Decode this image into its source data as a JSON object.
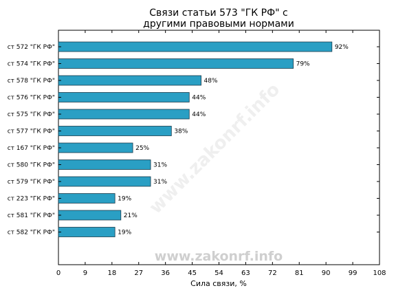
{
  "chart_data": {
    "type": "bar",
    "orientation": "horizontal",
    "title": "Связи статьи 573 \"ГК РФ\" с другими правовыми нормами",
    "title_lines": [
      "Связи статьи 573 \"ГК РФ\" с",
      "другими правовыми нормами"
    ],
    "xlabel": "Сила связи, %",
    "ylabel": "",
    "categories": [
      "ст 572 \"ГК РФ\"",
      "ст 574 \"ГК РФ\"",
      "ст 578 \"ГК РФ\"",
      "ст 576 \"ГК РФ\"",
      "ст 575 \"ГК РФ\"",
      "ст 577 \"ГК РФ\"",
      "ст 167 \"ГК РФ\"",
      "ст 580 \"ГК РФ\"",
      "ст 579 \"ГК РФ\"",
      "ст 223 \"ГК РФ\"",
      "ст 581 \"ГК РФ\"",
      "ст 582 \"ГК РФ\""
    ],
    "values": [
      92,
      79,
      48,
      44,
      44,
      38,
      25,
      31,
      31,
      19,
      21,
      19
    ],
    "value_labels": [
      "92%",
      "79%",
      "48%",
      "44%",
      "44%",
      "38%",
      "25%",
      "31%",
      "31%",
      "19%",
      "21%",
      "19%"
    ],
    "xlim": [
      0,
      108
    ],
    "xticks": [
      0,
      9,
      18,
      27,
      36,
      45,
      54,
      63,
      72,
      81,
      90,
      99,
      108
    ],
    "grid": false,
    "bar_color": "#2a9fc4",
    "bar_edge_color": "#1a3a4a"
  },
  "watermark": {
    "text": "www.zakonrf.info",
    "color": "#cfcfcf"
  }
}
